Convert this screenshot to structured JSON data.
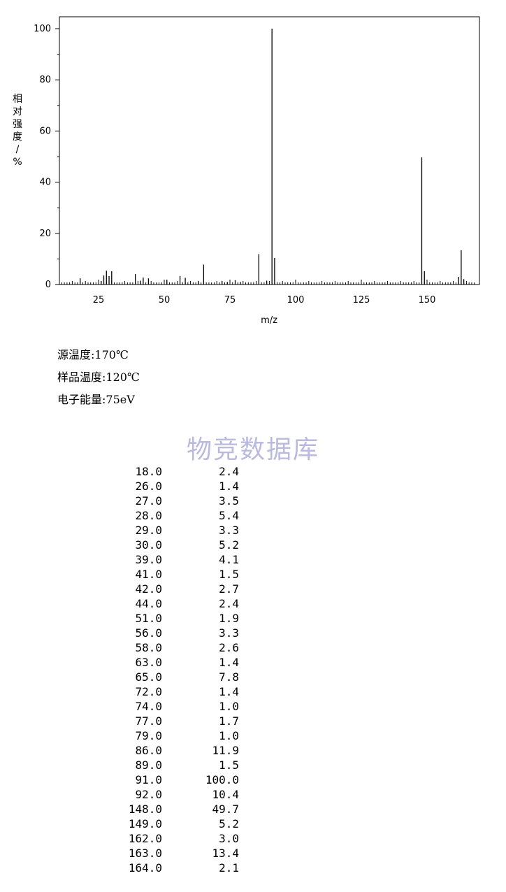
{
  "chart_data": {
    "type": "bar",
    "title": "",
    "xlabel": "m/z",
    "ylabel": "相对强度/%",
    "xlim": [
      10,
      168
    ],
    "ylim": [
      0,
      105
    ],
    "xticks_major": [
      25,
      50,
      75,
      100,
      125,
      150
    ],
    "xticks_minor_step": 1,
    "yticks": [
      0,
      20,
      40,
      60,
      80,
      100
    ],
    "bar_color": "#000000",
    "x": [
      18.0,
      26.0,
      27.0,
      28.0,
      29.0,
      30.0,
      39.0,
      41.0,
      42.0,
      44.0,
      51.0,
      56.0,
      58.0,
      63.0,
      65.0,
      72.0,
      74.0,
      77.0,
      79.0,
      86.0,
      89.0,
      91.0,
      92.0,
      148.0,
      149.0,
      162.0,
      163.0,
      164.0
    ],
    "values": [
      2.4,
      1.4,
      3.5,
      5.4,
      3.3,
      5.2,
      4.1,
      1.5,
      2.7,
      2.4,
      1.9,
      3.3,
      2.6,
      1.4,
      7.8,
      1.4,
      1.0,
      1.7,
      1.0,
      11.9,
      1.5,
      100.0,
      10.4,
      49.7,
      5.2,
      3.0,
      13.4,
      2.1
    ]
  },
  "conditions": {
    "source_temp": "源温度:170℃",
    "sample_temp": "样品温度:120℃",
    "electron_energy": "电子能量:75eV"
  },
  "watermark": "物竞数据库",
  "peak_table": {
    "mz": [
      "18.0",
      "26.0",
      "27.0",
      "28.0",
      "29.0",
      "30.0",
      "39.0",
      "41.0",
      "42.0",
      "44.0",
      "51.0",
      "56.0",
      "58.0",
      "63.0",
      "65.0",
      "72.0",
      "74.0",
      "77.0",
      "79.0",
      "86.0",
      "89.0",
      "91.0",
      "92.0",
      "148.0",
      "149.0",
      "162.0",
      "163.0",
      "164.0"
    ],
    "abundance": [
      "2.4",
      "1.4",
      "3.5",
      "5.4",
      "3.3",
      "5.2",
      "4.1",
      "1.5",
      "2.7",
      "2.4",
      "1.9",
      "3.3",
      "2.6",
      "1.4",
      "7.8",
      "1.4",
      "1.0",
      "1.7",
      "1.0",
      "11.9",
      "1.5",
      "100.0",
      "10.4",
      "49.7",
      "5.2",
      "3.0",
      "13.4",
      "2.1"
    ]
  }
}
